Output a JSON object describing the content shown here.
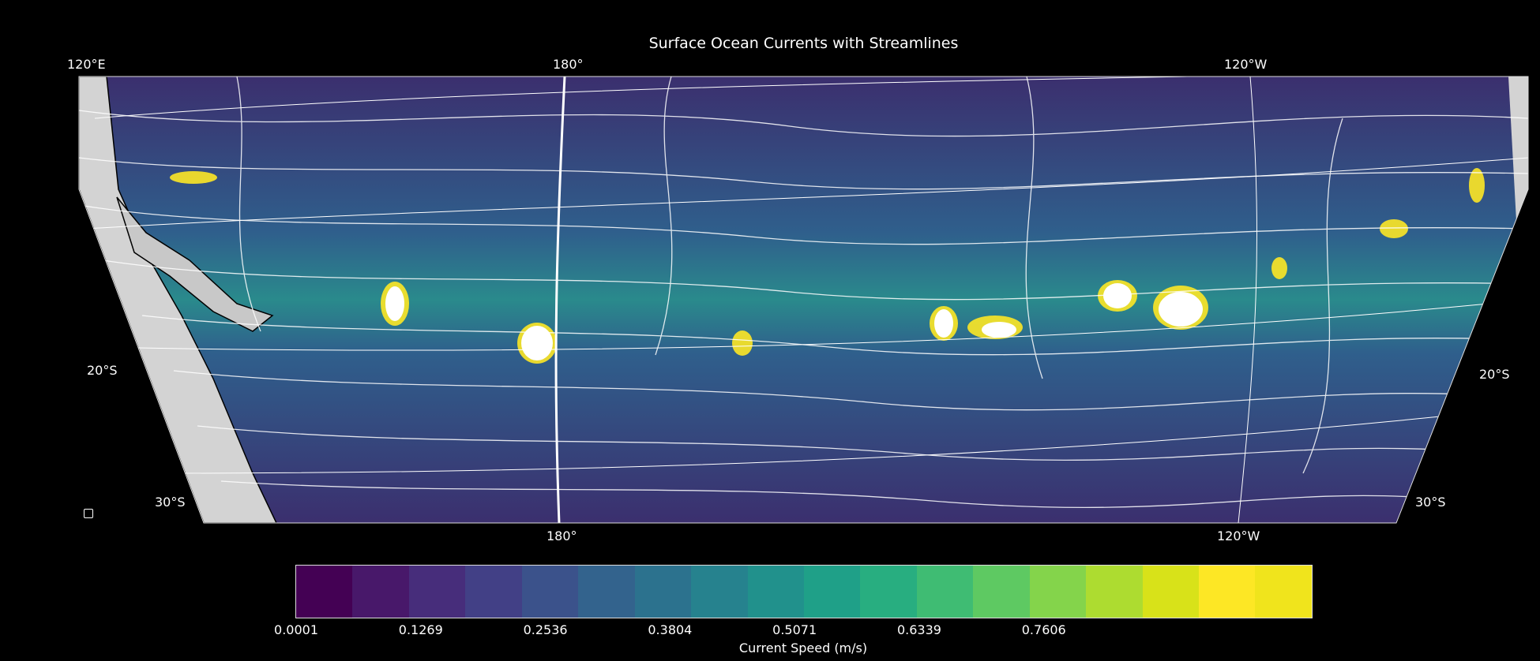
{
  "title": "Surface Ocean Currents with Streamlines",
  "top_longitude_labels": [
    "120°E",
    "180°",
    "120°W"
  ],
  "bottom_longitude_labels": [
    "180°",
    "120°W"
  ],
  "left_latitude_labels": [
    "20°S",
    "30°S"
  ],
  "right_latitude_labels": [
    "20°S",
    "30°S"
  ],
  "colorbar": {
    "label": "Current Speed (m/s)",
    "ticks": [
      "0.0001",
      "0.1269",
      "0.2536",
      "0.3804",
      "0.5071",
      "0.6339",
      "0.7606"
    ],
    "colors": [
      "#440154",
      "#48186a",
      "#472d7b",
      "#424086",
      "#3b528b",
      "#33638d",
      "#2c728e",
      "#26828e",
      "#21918c",
      "#1fa088",
      "#28ae80",
      "#3fbc73",
      "#5ec962",
      "#84d44b",
      "#addc30",
      "#d8e219",
      "#fde725",
      "#f0e41c"
    ]
  },
  "map": {
    "land_color": "#d3d3d3",
    "ocean_low_color": "#3b2f6e",
    "ocean_mid_color": "#2a8a8c",
    "ocean_high_color": "#fde725",
    "streamline_color": "#ffffff"
  }
}
